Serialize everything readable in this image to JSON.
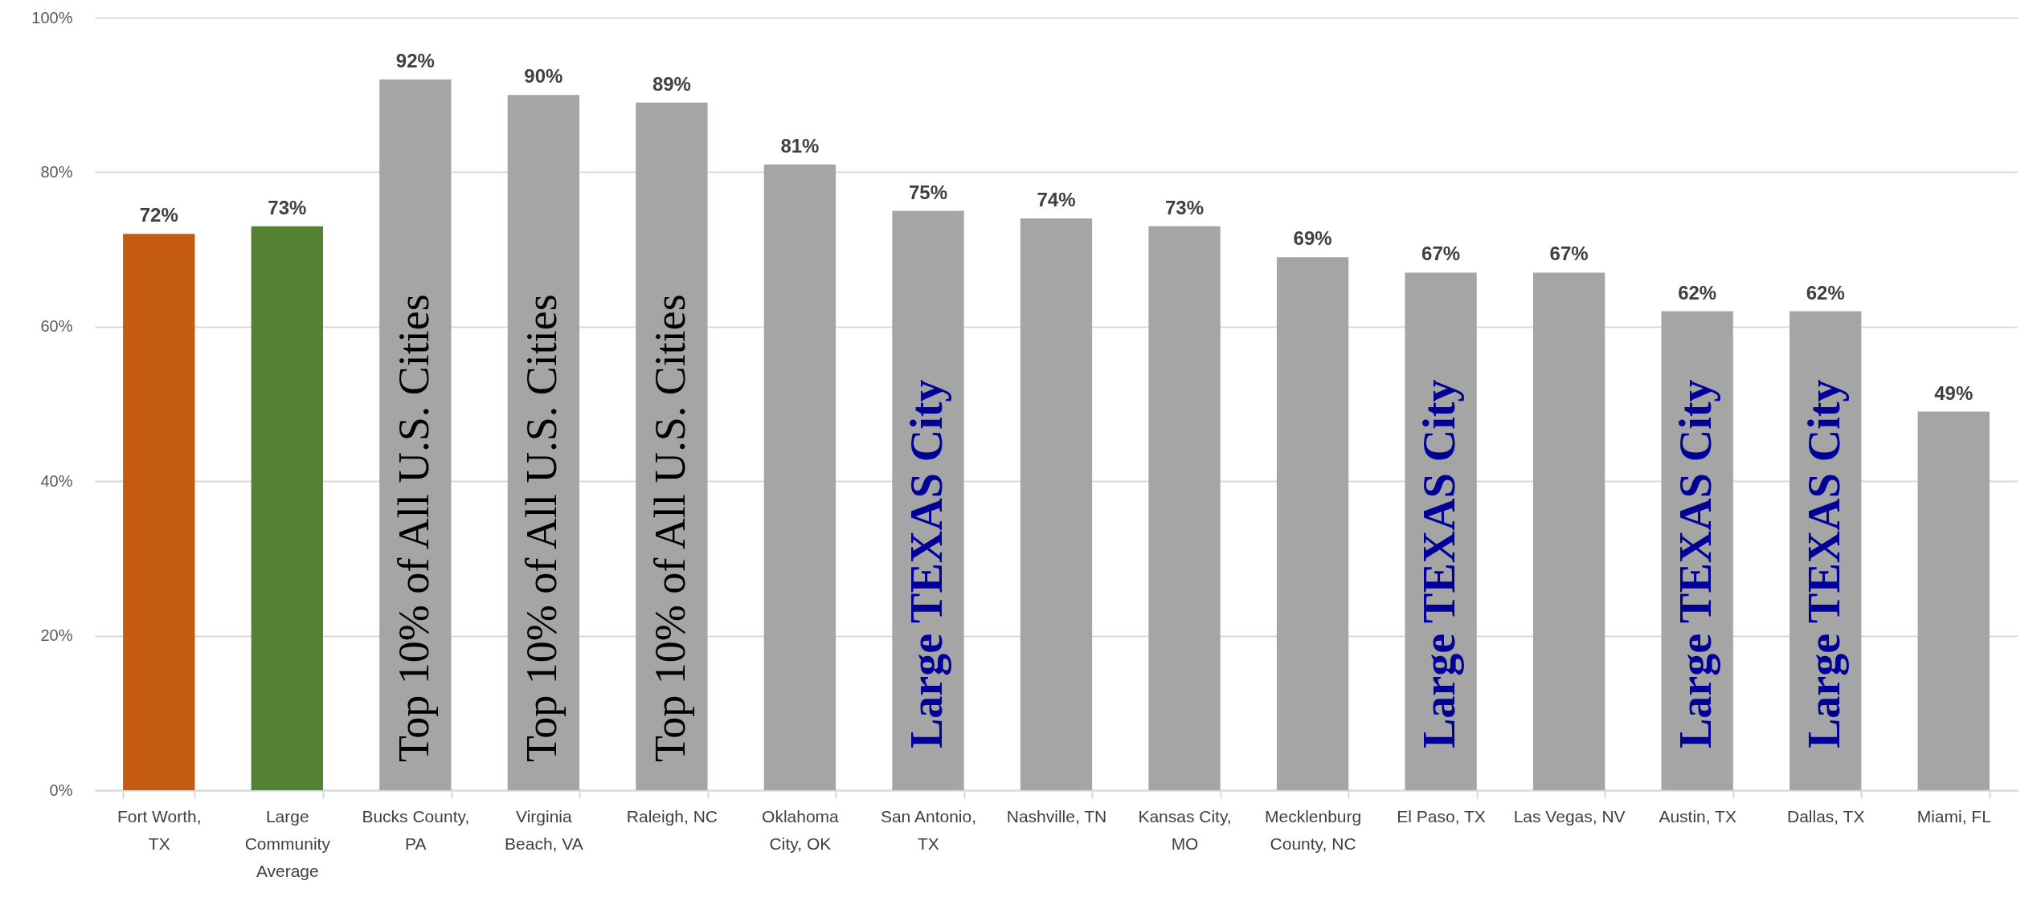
{
  "chart_data": {
    "type": "bar",
    "stacked": true,
    "categories": [
      "Fort Worth, TX",
      "Large Community Average",
      "Bucks County, PA",
      "Virginia Beach, VA",
      "Raleigh, NC",
      "Oklahoma City, OK",
      "San Antonio, TX",
      "Nashville, TN",
      "Kansas City, MO",
      "Mecklenburg County, NC",
      "El Paso, TX",
      "Las Vegas, NV",
      "Austin, TX",
      "Dallas, TX",
      "Miami, FL"
    ],
    "series": [
      {
        "color": "#c55a11",
        "values": [
          72,
          null,
          null,
          null,
          null,
          null,
          null,
          null,
          null,
          null,
          null,
          null,
          null,
          null,
          null
        ],
        "value_labels": [
          "72%",
          null,
          null,
          null,
          null,
          null,
          null,
          null,
          null,
          null,
          null,
          null,
          null,
          null,
          null
        ]
      },
      {
        "color": "#548235",
        "values": [
          null,
          73,
          null,
          null,
          null,
          null,
          null,
          null,
          null,
          null,
          null,
          null,
          null,
          null,
          null
        ],
        "value_labels": [
          null,
          "73%",
          null,
          null,
          null,
          null,
          null,
          null,
          null,
          null,
          null,
          null,
          null,
          null,
          null
        ]
      },
      {
        "name": "Top 10% of All U.S. Cities",
        "color": "#a5a5a5",
        "values": [
          null,
          null,
          92,
          90,
          89,
          null,
          null,
          null,
          null,
          null,
          null,
          null,
          null,
          null,
          null
        ],
        "value_labels": [
          null,
          null,
          "92%",
          "90%",
          "89%",
          null,
          null,
          null,
          null,
          null,
          null,
          null,
          null,
          null,
          null
        ]
      },
      {
        "name": "Large TEXAS City",
        "color": "#a5a5a5",
        "values": [
          null,
          null,
          null,
          null,
          null,
          null,
          75,
          null,
          null,
          null,
          67,
          null,
          62,
          62,
          null
        ],
        "value_labels": [
          null,
          null,
          null,
          null,
          null,
          null,
          "75%",
          null,
          null,
          null,
          "67%",
          null,
          "62%",
          "62%",
          null
        ]
      },
      {
        "color": "#a5a5a5",
        "values": [
          null,
          null,
          null,
          null,
          null,
          81,
          null,
          74,
          73,
          69,
          null,
          67,
          null,
          null,
          49
        ],
        "value_labels": [
          null,
          null,
          null,
          null,
          null,
          "81%",
          null,
          "74%",
          "73%",
          "69%",
          null,
          "67%",
          null,
          null,
          "49%"
        ]
      }
    ],
    "ylim": [
      0,
      100
    ],
    "yticks": [
      {
        "value": 0,
        "label": "0%"
      },
      {
        "value": 20,
        "label": "20%"
      },
      {
        "value": 40,
        "label": "40%"
      },
      {
        "value": 60,
        "label": "60%"
      },
      {
        "value": 80,
        "label": "80%"
      },
      {
        "value": 100,
        "label": "100%"
      }
    ],
    "grid": "y"
  }
}
